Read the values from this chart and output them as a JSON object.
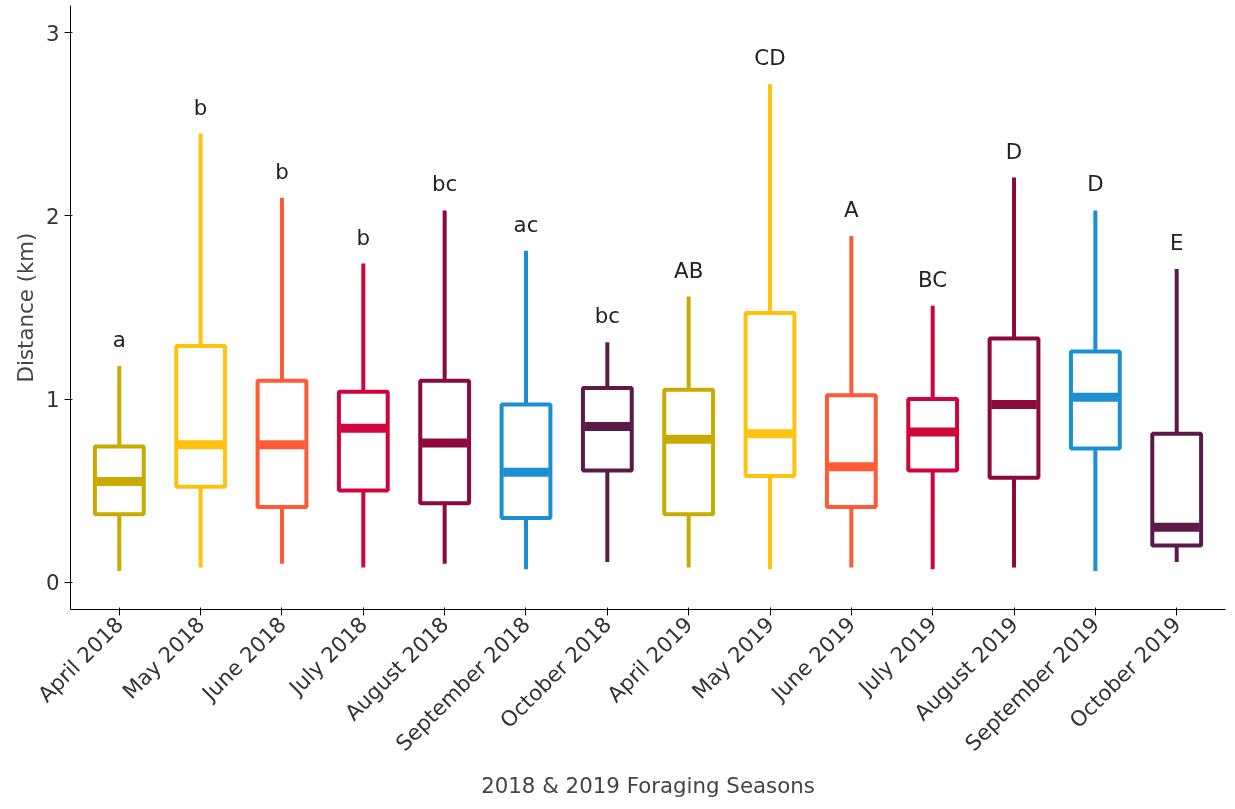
{
  "chart_data": {
    "type": "box",
    "xlabel": "2018 & 2019 Foraging Seasons",
    "ylabel": "Distance (km)",
    "categories": [
      "April 2018",
      "May 2018",
      "June 2018",
      "July 2018",
      "August 2018",
      "September 2018",
      "October 2018",
      "April 2019",
      "May 2019",
      "June 2019",
      "July 2019",
      "August 2019",
      "September 2019",
      "October 2019"
    ],
    "colors": [
      "#c9aa00",
      "#ffc20e",
      "#ff5a36",
      "#d0043c",
      "#8b0a3b",
      "#1b8fd2",
      "#5b1a47",
      "#c9aa00",
      "#ffc20e",
      "#ff5a36",
      "#d0043c",
      "#8b0a3b",
      "#1b8fd2",
      "#5b1a47"
    ],
    "boxes": [
      {
        "low": 0.06,
        "q1": 0.37,
        "median": 0.55,
        "q3": 0.74,
        "high": 1.18
      },
      {
        "low": 0.08,
        "q1": 0.52,
        "median": 0.75,
        "q3": 1.29,
        "high": 2.45
      },
      {
        "low": 0.1,
        "q1": 0.41,
        "median": 0.75,
        "q3": 1.1,
        "high": 2.1
      },
      {
        "low": 0.08,
        "q1": 0.5,
        "median": 0.84,
        "q3": 1.04,
        "high": 1.74
      },
      {
        "low": 0.1,
        "q1": 0.43,
        "median": 0.76,
        "q3": 1.1,
        "high": 2.03
      },
      {
        "low": 0.07,
        "q1": 0.35,
        "median": 0.6,
        "q3": 0.97,
        "high": 1.81
      },
      {
        "low": 0.11,
        "q1": 0.61,
        "median": 0.85,
        "q3": 1.06,
        "high": 1.31
      },
      {
        "low": 0.08,
        "q1": 0.37,
        "median": 0.78,
        "q3": 1.05,
        "high": 1.56
      },
      {
        "low": 0.07,
        "q1": 0.58,
        "median": 0.81,
        "q3": 1.47,
        "high": 2.72
      },
      {
        "low": 0.08,
        "q1": 0.41,
        "median": 0.63,
        "q3": 1.02,
        "high": 1.89
      },
      {
        "low": 0.07,
        "q1": 0.61,
        "median": 0.82,
        "q3": 1.0,
        "high": 1.51
      },
      {
        "low": 0.08,
        "q1": 0.57,
        "median": 0.97,
        "q3": 1.33,
        "high": 2.21
      },
      {
        "low": 0.06,
        "q1": 0.73,
        "median": 1.01,
        "q3": 1.26,
        "high": 2.03
      },
      {
        "low": 0.11,
        "q1": 0.2,
        "median": 0.3,
        "q3": 0.81,
        "high": 1.71
      }
    ],
    "annotations": [
      "a",
      "b",
      "b",
      "b",
      "bc",
      "ac",
      "bc",
      "AB",
      "CD",
      "A",
      "BC",
      "D",
      "D",
      "E"
    ],
    "ylim": [
      -0.15,
      3.15
    ],
    "yticks": [
      0,
      1,
      2,
      3
    ],
    "grid": false
  }
}
